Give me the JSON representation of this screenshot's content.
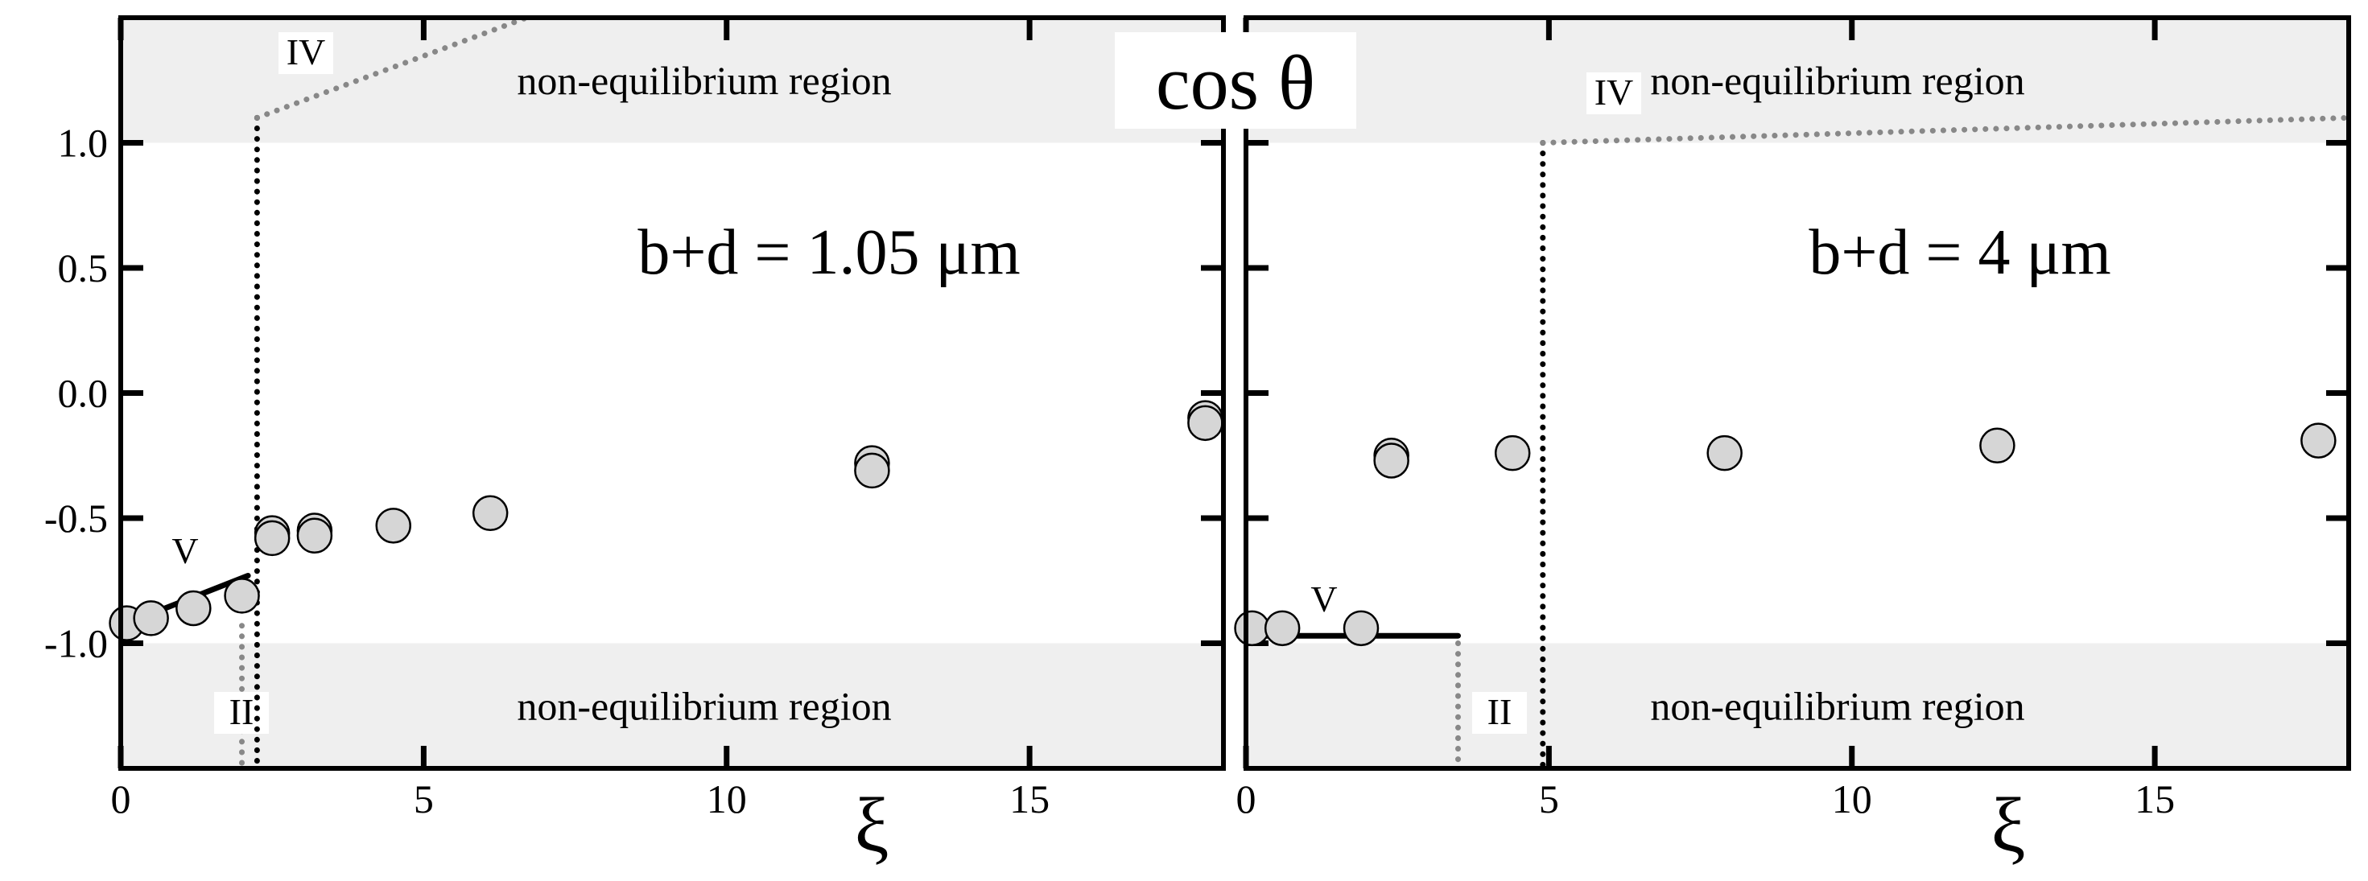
{
  "y_axis_label": "cos θ",
  "x_axis_label": "ξ",
  "chart_data": [
    {
      "type": "scatter",
      "title": "b+d = 1.05 μm",
      "xlabel": "ξ",
      "ylabel": "cos θ",
      "xlim": [
        0,
        18.2
      ],
      "ylim": [
        -1.5,
        1.5
      ],
      "xticks": [
        0,
        5,
        10,
        15
      ],
      "yticks": [
        -1.0,
        -0.5,
        0.0,
        0.5,
        1.0
      ],
      "x_tick_labels": [
        "0",
        "5",
        "10",
        "15"
      ],
      "y_tick_labels": [
        "-1.0",
        "-0.5",
        "0.0",
        "0.5",
        "1.0"
      ],
      "regions": [
        {
          "label": "non-equilibrium region",
          "y_range": [
            1.0,
            1.5
          ],
          "color": "#efefef"
        },
        {
          "label": "non-equilibrium region",
          "y_range": [
            -1.5,
            -1.0
          ],
          "color": "#efefef"
        }
      ],
      "series": [
        {
          "values": [
            [
              0.1,
              -0.92
            ],
            [
              0.5,
              -0.9
            ],
            [
              1.2,
              -0.86
            ],
            [
              2.0,
              -0.81
            ],
            [
              2.5,
              -0.56
            ],
            [
              2.5,
              -0.58
            ],
            [
              3.2,
              -0.55
            ],
            [
              3.2,
              -0.57
            ],
            [
              4.5,
              -0.53
            ],
            [
              6.1,
              -0.48
            ],
            [
              12.4,
              -0.28
            ],
            [
              12.4,
              -0.31
            ],
            [
              17.9,
              -0.1
            ],
            [
              17.9,
              -0.12
            ]
          ]
        }
      ],
      "curves": [
        {
          "label": "V",
          "style": "solid",
          "color": "#000000",
          "points": [
            [
              0.0,
              -0.93
            ],
            [
              2.1,
              -0.73
            ]
          ]
        },
        {
          "label": "II",
          "style": "dotted",
          "color": "#888888",
          "points": [
            [
              2.0,
              -0.93
            ],
            [
              2.0,
              -1.5
            ]
          ]
        },
        {
          "label": "",
          "style": "dotted",
          "color": "#000000",
          "points": [
            [
              2.25,
              1.1
            ],
            [
              2.25,
              -1.5
            ]
          ]
        },
        {
          "label": "IV",
          "style": "dotted",
          "color": "#888888",
          "points": [
            [
              2.25,
              1.1
            ],
            [
              6.7,
              1.5
            ]
          ]
        }
      ]
    },
    {
      "type": "scatter",
      "title": "b+d = 4 μm",
      "xlabel": "ξ",
      "ylabel": "cos θ",
      "xlim": [
        0,
        18.2
      ],
      "ylim": [
        -1.5,
        1.5
      ],
      "xticks": [
        0,
        5,
        10,
        15
      ],
      "yticks": [
        -1.0,
        -0.5,
        0.0,
        0.5,
        1.0
      ],
      "x_tick_labels": [
        "0",
        "5",
        "10",
        "15"
      ],
      "regions": [
        {
          "label": "non-equilibrium region",
          "y_range": [
            1.0,
            1.5
          ],
          "color": "#efefef"
        },
        {
          "label": "non-equilibrium region",
          "y_range": [
            -1.5,
            -1.0
          ],
          "color": "#efefef"
        }
      ],
      "series": [
        {
          "values": [
            [
              0.1,
              -0.94
            ],
            [
              0.6,
              -0.94
            ],
            [
              1.9,
              -0.94
            ],
            [
              2.4,
              -0.25
            ],
            [
              2.4,
              -0.27
            ],
            [
              4.4,
              -0.24
            ],
            [
              7.9,
              -0.24
            ],
            [
              12.4,
              -0.21
            ],
            [
              17.7,
              -0.19
            ]
          ]
        }
      ],
      "curves": [
        {
          "label": "V",
          "style": "solid",
          "color": "#000000",
          "points": [
            [
              0.0,
              -0.97
            ],
            [
              3.5,
              -0.97
            ]
          ]
        },
        {
          "label": "II",
          "style": "dotted",
          "color": "#888888",
          "points": [
            [
              3.5,
              -1.0
            ],
            [
              3.5,
              -1.5
            ]
          ]
        },
        {
          "label": "",
          "style": "dotted",
          "color": "#000000",
          "points": [
            [
              4.9,
              1.0
            ],
            [
              4.9,
              -1.5
            ]
          ]
        },
        {
          "label": "IV",
          "style": "dotted",
          "color": "#888888",
          "points": [
            [
              4.9,
              1.0
            ],
            [
              18.2,
              1.1
            ]
          ]
        }
      ]
    }
  ]
}
